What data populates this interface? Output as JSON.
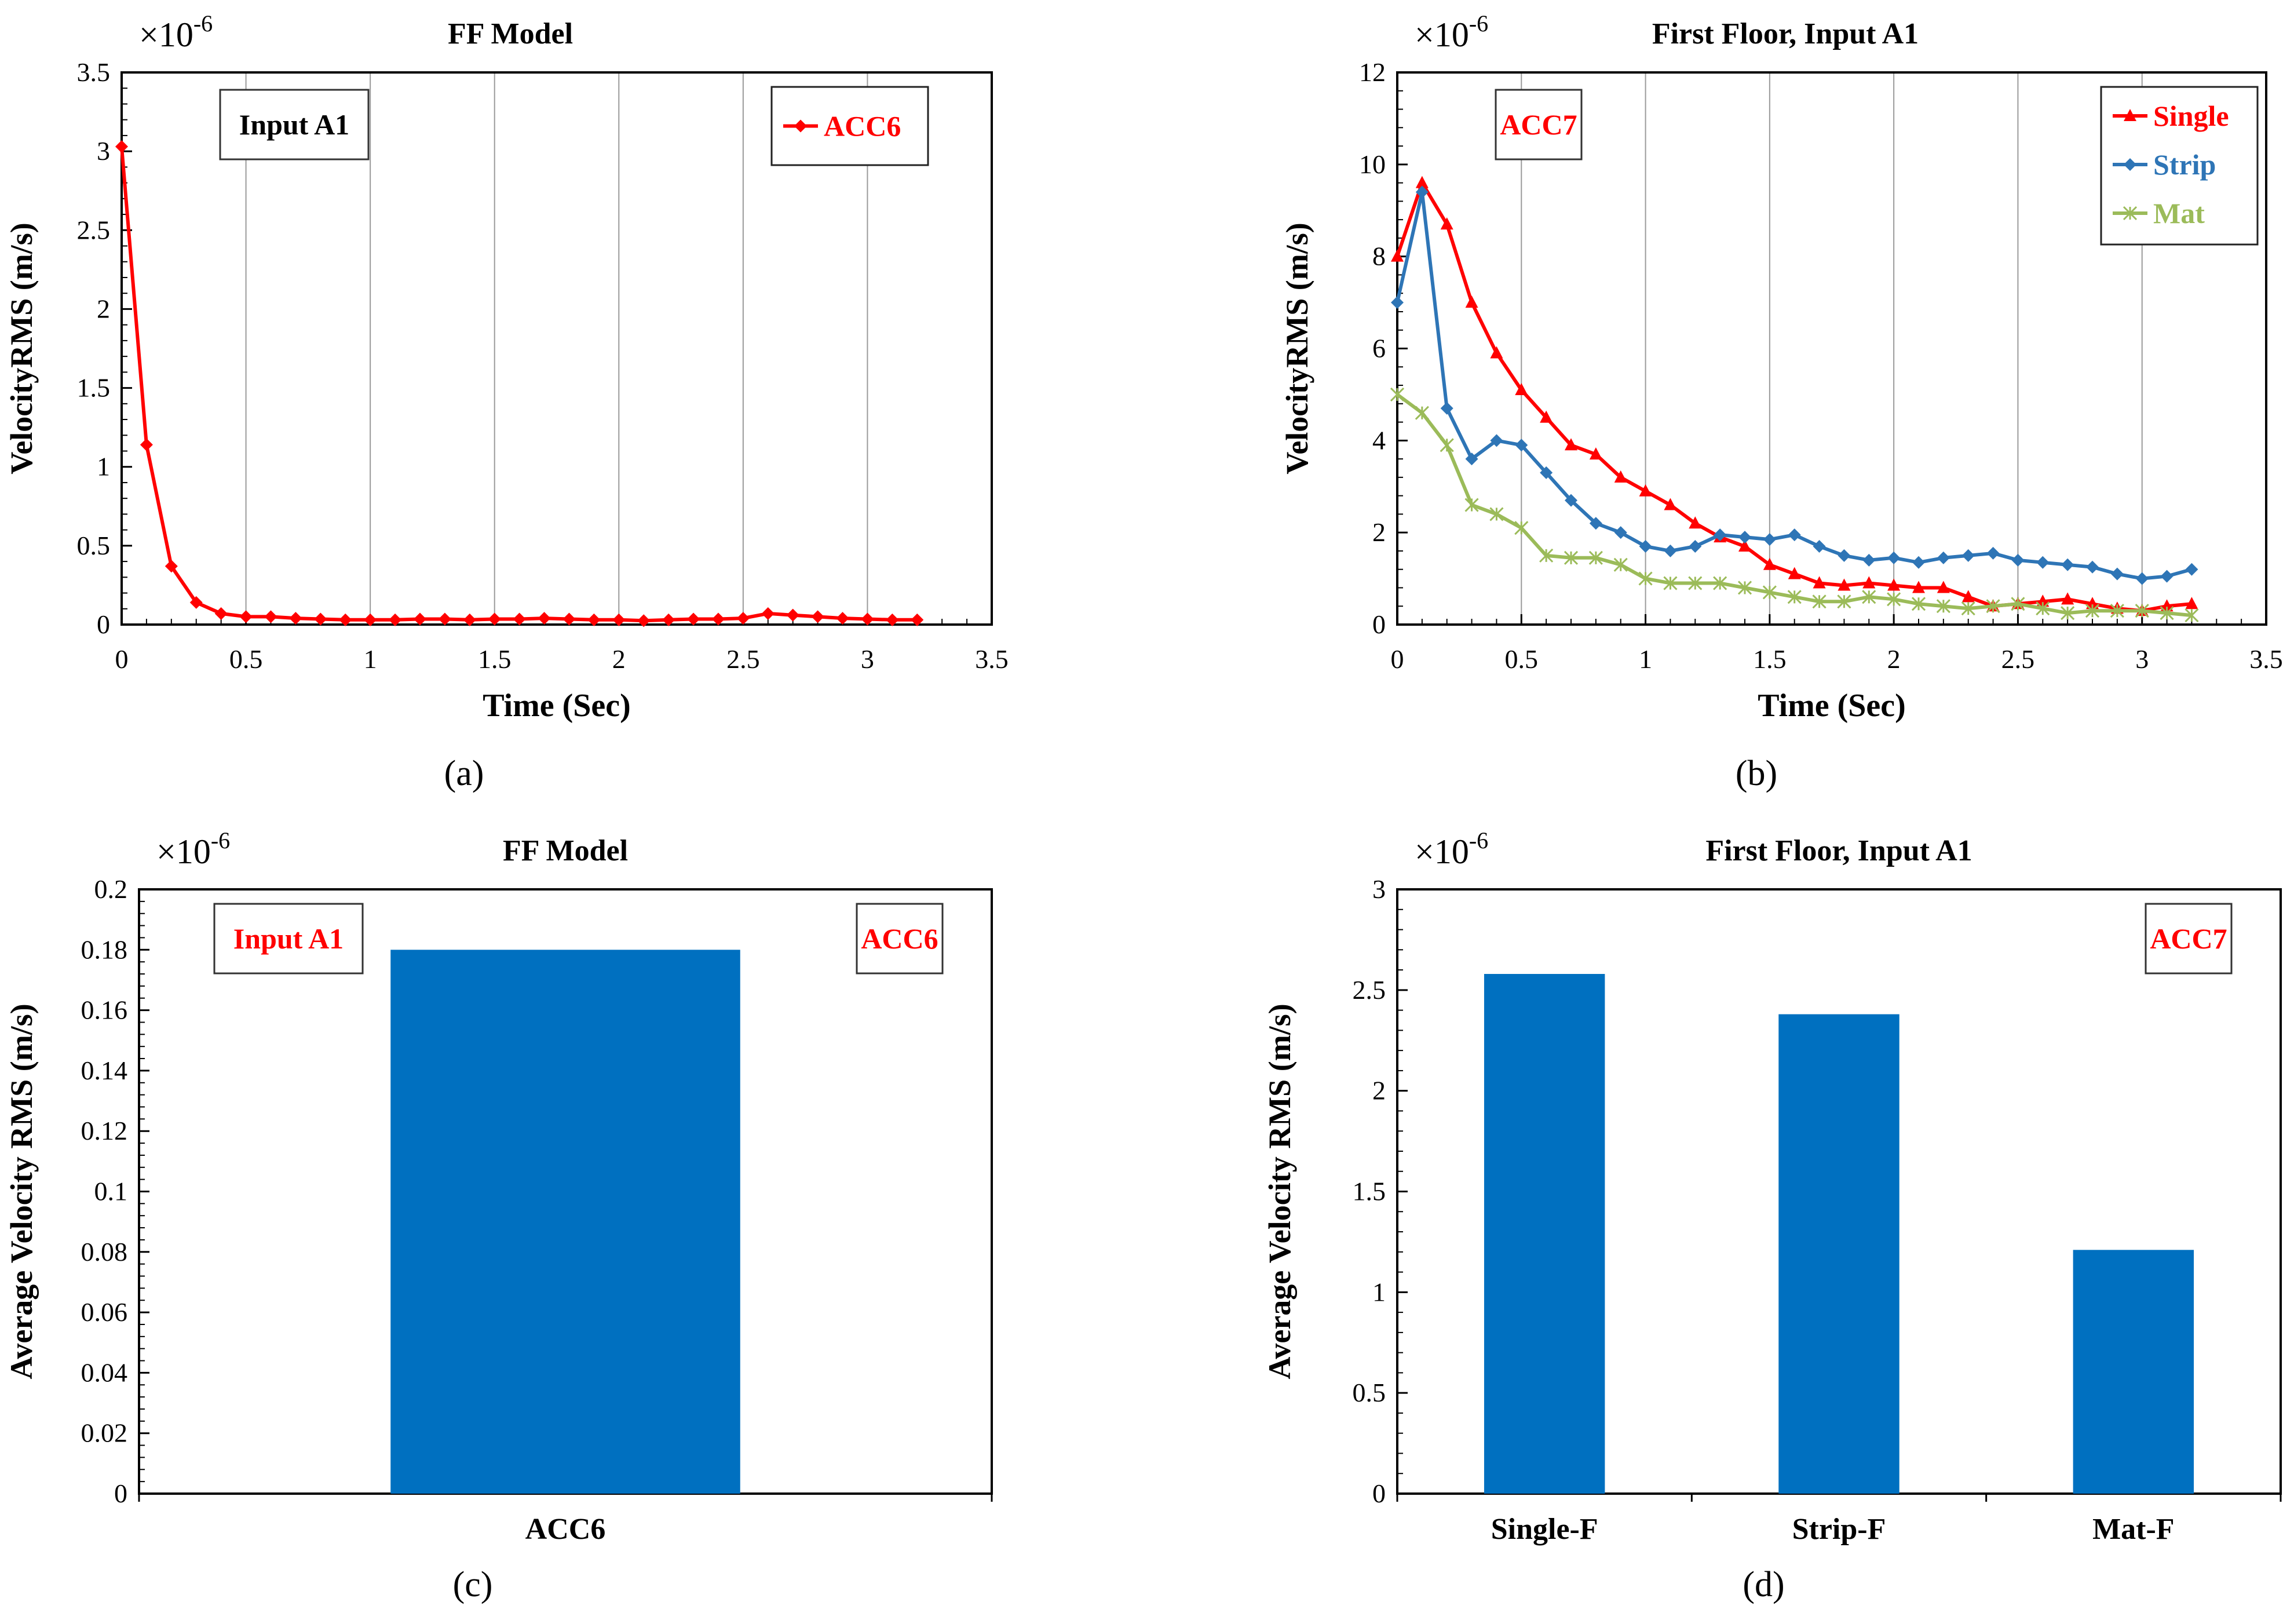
{
  "chart_data": [
    {
      "type": "line",
      "title": "FF Model",
      "xlabel": "Time (Sec)",
      "ylabel": "VelocityRMS (m/s)",
      "multiplier": "×10",
      "exponent": "-6",
      "panel_label": "(a)",
      "xlim": [
        0,
        3.5
      ],
      "ylim": [
        0,
        3.5
      ],
      "xticks": [
        0,
        0.5,
        1,
        1.5,
        2,
        2.5,
        3,
        3.5
      ],
      "yticks": [
        0,
        0.5,
        1,
        1.5,
        2,
        2.5,
        3,
        3.5
      ],
      "annotations": [
        {
          "text": "Input A1",
          "color": "#000000",
          "pos": "top-left"
        }
      ],
      "legend_pos": "top-right",
      "series": [
        {
          "name": "ACC6",
          "color": "#ff0000",
          "marker": "diamond",
          "x": [
            0,
            0.1,
            0.2,
            0.3,
            0.4,
            0.5,
            0.6,
            0.7,
            0.8,
            0.9,
            1.0,
            1.1,
            1.2,
            1.3,
            1.4,
            1.5,
            1.6,
            1.7,
            1.8,
            1.9,
            2.0,
            2.1,
            2.2,
            2.3,
            2.4,
            2.5,
            2.6,
            2.7,
            2.8,
            2.9,
            3.0,
            3.1,
            3.2
          ],
          "y": [
            3.03,
            1.14,
            0.37,
            0.14,
            0.07,
            0.05,
            0.05,
            0.04,
            0.035,
            0.03,
            0.03,
            0.03,
            0.035,
            0.035,
            0.03,
            0.035,
            0.035,
            0.04,
            0.035,
            0.03,
            0.03,
            0.025,
            0.03,
            0.035,
            0.035,
            0.04,
            0.07,
            0.06,
            0.05,
            0.04,
            0.035,
            0.03,
            0.03
          ]
        }
      ]
    },
    {
      "type": "line",
      "title": "First Floor, Input A1",
      "xlabel": "Time (Sec)",
      "ylabel": "VelocityRMS (m/s)",
      "multiplier": "×10",
      "exponent": "-6",
      "panel_label": "(b)",
      "xlim": [
        0,
        3.5
      ],
      "ylim": [
        0,
        12
      ],
      "xticks": [
        0,
        0.5,
        1,
        1.5,
        2,
        2.5,
        3,
        3.5
      ],
      "yticks": [
        0,
        2,
        4,
        6,
        8,
        10,
        12
      ],
      "annotations": [
        {
          "text": "ACC7",
          "color": "#ff0000",
          "pos": "top-left"
        }
      ],
      "legend_pos": "top-right",
      "series": [
        {
          "name": "Single",
          "color": "#ff0000",
          "marker": "triangle",
          "x": [
            0,
            0.1,
            0.2,
            0.3,
            0.4,
            0.5,
            0.6,
            0.7,
            0.8,
            0.9,
            1.0,
            1.1,
            1.2,
            1.3,
            1.4,
            1.5,
            1.6,
            1.7,
            1.8,
            1.9,
            2.0,
            2.1,
            2.2,
            2.3,
            2.4,
            2.5,
            2.6,
            2.7,
            2.8,
            2.9,
            3.0,
            3.1,
            3.2
          ],
          "y": [
            8.0,
            9.6,
            8.7,
            7.0,
            5.9,
            5.1,
            4.5,
            3.9,
            3.7,
            3.2,
            2.9,
            2.6,
            2.2,
            1.9,
            1.7,
            1.3,
            1.1,
            0.9,
            0.85,
            0.9,
            0.85,
            0.8,
            0.8,
            0.6,
            0.4,
            0.45,
            0.5,
            0.55,
            0.45,
            0.35,
            0.3,
            0.4,
            0.45
          ]
        },
        {
          "name": "Strip",
          "color": "#2e75b6",
          "marker": "diamond",
          "x": [
            0,
            0.1,
            0.2,
            0.3,
            0.4,
            0.5,
            0.6,
            0.7,
            0.8,
            0.9,
            1.0,
            1.1,
            1.2,
            1.3,
            1.4,
            1.5,
            1.6,
            1.7,
            1.8,
            1.9,
            2.0,
            2.1,
            2.2,
            2.3,
            2.4,
            2.5,
            2.6,
            2.7,
            2.8,
            2.9,
            3.0,
            3.1,
            3.2
          ],
          "y": [
            7.0,
            9.4,
            4.7,
            3.6,
            4.0,
            3.9,
            3.3,
            2.7,
            2.2,
            2.0,
            1.7,
            1.6,
            1.7,
            1.95,
            1.9,
            1.85,
            1.95,
            1.7,
            1.5,
            1.4,
            1.45,
            1.35,
            1.45,
            1.5,
            1.55,
            1.4,
            1.35,
            1.3,
            1.25,
            1.1,
            1.0,
            1.05,
            1.2
          ]
        },
        {
          "name": "Mat",
          "color": "#9bbb59",
          "marker": "star",
          "x": [
            0,
            0.1,
            0.2,
            0.3,
            0.4,
            0.5,
            0.6,
            0.7,
            0.8,
            0.9,
            1.0,
            1.1,
            1.2,
            1.3,
            1.4,
            1.5,
            1.6,
            1.7,
            1.8,
            1.9,
            2.0,
            2.1,
            2.2,
            2.3,
            2.4,
            2.5,
            2.6,
            2.7,
            2.8,
            2.9,
            3.0,
            3.1,
            3.2
          ],
          "y": [
            5.0,
            4.6,
            3.9,
            2.6,
            2.4,
            2.1,
            1.5,
            1.45,
            1.45,
            1.3,
            1.0,
            0.9,
            0.9,
            0.9,
            0.8,
            0.7,
            0.6,
            0.5,
            0.5,
            0.6,
            0.55,
            0.45,
            0.4,
            0.35,
            0.4,
            0.45,
            0.35,
            0.25,
            0.3,
            0.3,
            0.3,
            0.25,
            0.2
          ]
        }
      ]
    },
    {
      "type": "bar",
      "title": "FF Model",
      "xlabel": "",
      "ylabel": "Average Velocity RMS (m/s)",
      "multiplier": "×10",
      "exponent": "-6",
      "panel_label": "(c)",
      "ylim": [
        0,
        0.2
      ],
      "yticks": [
        0,
        0.02,
        0.04,
        0.06,
        0.08,
        0.1,
        0.12,
        0.14,
        0.16,
        0.18,
        0.2
      ],
      "annotations": [
        {
          "text": "Input A1",
          "color": "#ff0000",
          "pos": "top-left"
        },
        {
          "text": "ACC6",
          "color": "#ff0000",
          "pos": "top-right"
        }
      ],
      "bar_color": "#0070c0",
      "categories": [
        "ACC6"
      ],
      "values": [
        0.18
      ]
    },
    {
      "type": "bar",
      "title": "First Floor, Input A1",
      "xlabel": "",
      "ylabel": "Average Velocity RMS (m/s)",
      "multiplier": "×10",
      "exponent": "-6",
      "panel_label": "(d)",
      "ylim": [
        0,
        3
      ],
      "yticks": [
        0,
        0.5,
        1,
        1.5,
        2,
        2.5,
        3
      ],
      "annotations": [
        {
          "text": "ACC7",
          "color": "#ff0000",
          "pos": "top-right"
        }
      ],
      "bar_color": "#0070c0",
      "categories": [
        "Single-F",
        "Strip-F",
        "Mat-F"
      ],
      "values": [
        2.58,
        2.38,
        1.21
      ]
    }
  ]
}
